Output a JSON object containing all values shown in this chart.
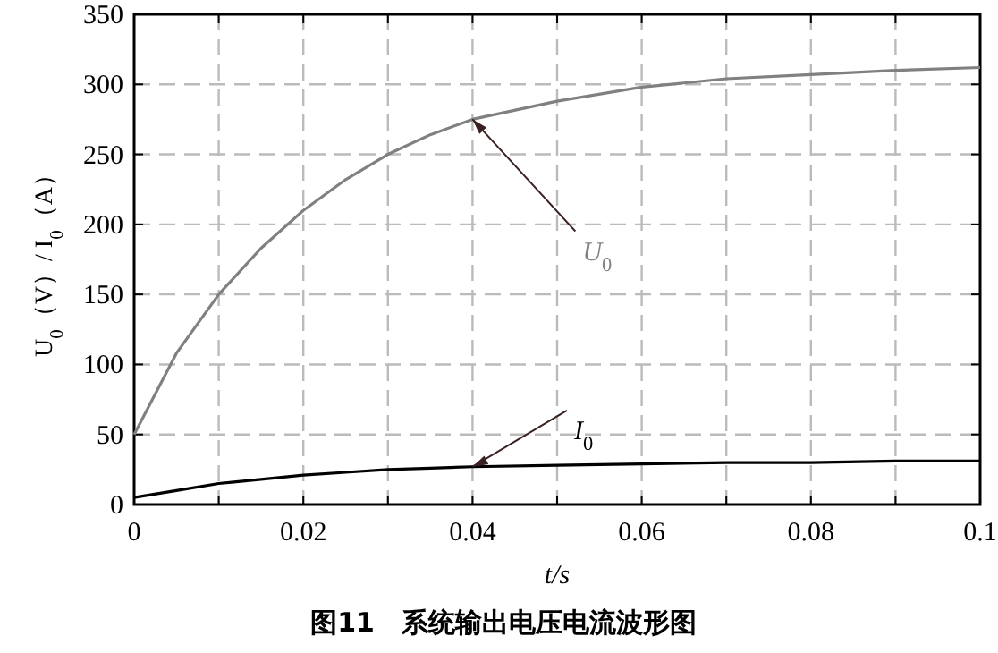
{
  "chart_data": {
    "type": "line",
    "title": "图11　系统输出电压电流波形图",
    "xlabel": "t/s",
    "ylabel": "U$_{0}$（V）/ I$_{0}$（A）",
    "x": [
      0,
      0.005,
      0.01,
      0.015,
      0.02,
      0.025,
      0.03,
      0.035,
      0.04,
      0.05,
      0.06,
      0.07,
      0.08,
      0.09,
      0.1
    ],
    "series": [
      {
        "name": "U$_{0}$",
        "color": "#808080",
        "values": [
          50,
          108,
          150,
          183,
          210,
          232,
          250,
          264,
          275,
          288,
          298,
          304,
          307,
          310,
          312
        ]
      },
      {
        "name": "I$_{0}$",
        "color": "#000000",
        "values": [
          5,
          10,
          15,
          18,
          21,
          23,
          25,
          26,
          27,
          28,
          29,
          30,
          30,
          31,
          31
        ]
      }
    ],
    "xlim": [
      0,
      0.1
    ],
    "ylim": [
      0,
      350
    ],
    "xticks": [
      0,
      {
        "value": 0.01,
        "label": null
      },
      0.02,
      {
        "value": 0.03,
        "label": null
      },
      0.04,
      {
        "value": 0.05,
        "label": null
      },
      0.06,
      {
        "value": 0.07,
        "label": null
      },
      0.08,
      {
        "value": 0.09,
        "label": null
      },
      {
        "value": 0.1,
        "label": "0.1"
      }
    ],
    "yticks": [
      0,
      50,
      100,
      150,
      200,
      250,
      300,
      350
    ],
    "grid": true,
    "legend": false,
    "marker": "none",
    "line_style": "solid"
  }
}
